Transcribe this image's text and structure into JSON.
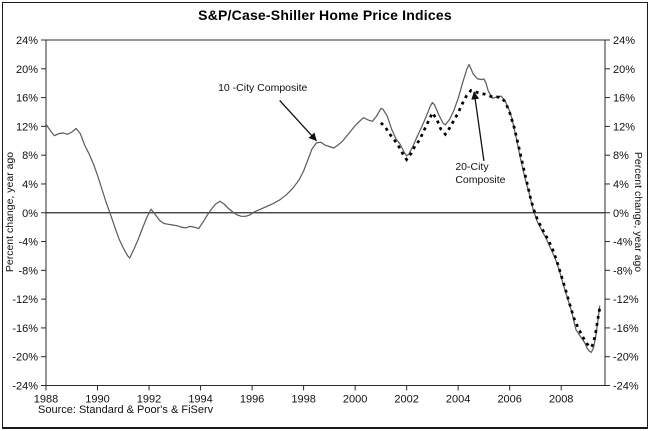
{
  "header": {
    "title": "S&P/Case-Shiller Home Price Indices"
  },
  "axis": {
    "left_label": "Percent change, year ago",
    "right_label": "Percent change, year ago"
  },
  "footer": {
    "source": "Source: Standard & Poor's & FiServ"
  },
  "colors": {
    "solid_line": "#5a5a5a",
    "dotted_line": "#000000",
    "axis": "#2b2b2b"
  },
  "chart_data": {
    "type": "line",
    "title": "S&P/Case-Shiller Home Price Indices",
    "xlabel": "",
    "ylabel": "Percent change, year ago",
    "xlim": [
      1988,
      2009.7
    ],
    "ylim": [
      -24,
      24
    ],
    "grid": false,
    "legend_position": "none",
    "zero_line": true,
    "yticks": [
      24,
      20,
      16,
      12,
      8,
      4,
      0,
      -4,
      -8,
      -12,
      -16,
      -20,
      -24
    ],
    "ytick_labels": [
      "24%",
      "20%",
      "16%",
      "12%",
      "8%",
      "4%",
      "0%",
      "-4%",
      "-8%",
      "-12%",
      "-16%",
      "-20%",
      "-24%"
    ],
    "xticks": [
      1988,
      1990,
      1992,
      1994,
      1996,
      1998,
      2000,
      2002,
      2004,
      2006,
      2008
    ],
    "xtick_labels": [
      "1988",
      "1990",
      "1992",
      "1994",
      "1996",
      "1998",
      "2000",
      "2002",
      "2004",
      "2006",
      "2008"
    ],
    "series": [
      {
        "name": "10-City Composite",
        "style": "solid",
        "color": "#5a5a5a",
        "points": [
          [
            1988.0,
            12.3
          ],
          [
            1988.17,
            11.4
          ],
          [
            1988.33,
            10.7
          ],
          [
            1988.5,
            11.0
          ],
          [
            1988.67,
            11.1
          ],
          [
            1988.83,
            10.9
          ],
          [
            1989.0,
            11.2
          ],
          [
            1989.17,
            11.7
          ],
          [
            1989.33,
            11.0
          ],
          [
            1989.5,
            9.4
          ],
          [
            1989.67,
            8.2
          ],
          [
            1989.83,
            6.9
          ],
          [
            1990.0,
            5.2
          ],
          [
            1990.17,
            3.3
          ],
          [
            1990.33,
            1.5
          ],
          [
            1990.5,
            -0.2
          ],
          [
            1990.67,
            -2.0
          ],
          [
            1990.83,
            -3.6
          ],
          [
            1991.0,
            -4.9
          ],
          [
            1991.17,
            -6.0
          ],
          [
            1991.25,
            -6.3
          ],
          [
            1991.42,
            -5.0
          ],
          [
            1991.58,
            -3.7
          ],
          [
            1991.75,
            -2.1
          ],
          [
            1991.92,
            -0.6
          ],
          [
            1992.08,
            0.5
          ],
          [
            1992.25,
            -0.3
          ],
          [
            1992.42,
            -1.1
          ],
          [
            1992.58,
            -1.5
          ],
          [
            1992.75,
            -1.6
          ],
          [
            1992.92,
            -1.7
          ],
          [
            1993.08,
            -1.8
          ],
          [
            1993.25,
            -2.0
          ],
          [
            1993.42,
            -2.1
          ],
          [
            1993.58,
            -1.9
          ],
          [
            1993.75,
            -2.0
          ],
          [
            1993.92,
            -2.2
          ],
          [
            1994.08,
            -1.4
          ],
          [
            1994.25,
            -0.4
          ],
          [
            1994.42,
            0.5
          ],
          [
            1994.58,
            1.2
          ],
          [
            1994.75,
            1.6
          ],
          [
            1994.92,
            1.2
          ],
          [
            1995.08,
            0.6
          ],
          [
            1995.25,
            0.1
          ],
          [
            1995.42,
            -0.3
          ],
          [
            1995.58,
            -0.5
          ],
          [
            1995.75,
            -0.5
          ],
          [
            1995.92,
            -0.3
          ],
          [
            1996.08,
            0.1
          ],
          [
            1996.33,
            0.5
          ],
          [
            1996.58,
            0.9
          ],
          [
            1996.83,
            1.3
          ],
          [
            1997.08,
            1.8
          ],
          [
            1997.33,
            2.5
          ],
          [
            1997.58,
            3.4
          ],
          [
            1997.83,
            4.6
          ],
          [
            1998.0,
            5.8
          ],
          [
            1998.17,
            7.4
          ],
          [
            1998.33,
            8.9
          ],
          [
            1998.5,
            9.7
          ],
          [
            1998.67,
            9.8
          ],
          [
            1998.83,
            9.4
          ],
          [
            1999.0,
            9.2
          ],
          [
            1999.17,
            9.0
          ],
          [
            1999.33,
            9.4
          ],
          [
            1999.5,
            9.9
          ],
          [
            1999.75,
            11.0
          ],
          [
            2000.0,
            12.1
          ],
          [
            2000.17,
            12.7
          ],
          [
            2000.33,
            13.2
          ],
          [
            2000.5,
            12.9
          ],
          [
            2000.67,
            12.7
          ],
          [
            2000.83,
            13.4
          ],
          [
            2001.0,
            14.5
          ],
          [
            2001.08,
            14.4
          ],
          [
            2001.25,
            13.4
          ],
          [
            2001.42,
            11.6
          ],
          [
            2001.58,
            10.3
          ],
          [
            2001.75,
            9.5
          ],
          [
            2001.92,
            8.3
          ],
          [
            2002.0,
            7.9
          ],
          [
            2002.08,
            8.1
          ],
          [
            2002.25,
            9.3
          ],
          [
            2002.42,
            10.7
          ],
          [
            2002.58,
            11.9
          ],
          [
            2002.75,
            13.3
          ],
          [
            2002.92,
            14.8
          ],
          [
            2003.0,
            15.3
          ],
          [
            2003.08,
            15.0
          ],
          [
            2003.25,
            13.6
          ],
          [
            2003.42,
            12.4
          ],
          [
            2003.5,
            12.2
          ],
          [
            2003.67,
            13.0
          ],
          [
            2003.83,
            14.2
          ],
          [
            2004.0,
            15.9
          ],
          [
            2004.17,
            18.0
          ],
          [
            2004.33,
            19.9
          ],
          [
            2004.42,
            20.6
          ],
          [
            2004.5,
            20.0
          ],
          [
            2004.58,
            19.3
          ],
          [
            2004.75,
            18.6
          ],
          [
            2004.92,
            18.5
          ],
          [
            2005.0,
            18.6
          ],
          [
            2005.08,
            18.0
          ],
          [
            2005.17,
            16.9
          ],
          [
            2005.33,
            15.9
          ],
          [
            2005.5,
            16.1
          ],
          [
            2005.67,
            16.2
          ],
          [
            2005.83,
            15.5
          ],
          [
            2006.0,
            14.1
          ],
          [
            2006.08,
            13.2
          ],
          [
            2006.25,
            10.5
          ],
          [
            2006.42,
            7.5
          ],
          [
            2006.58,
            5.0
          ],
          [
            2006.75,
            2.8
          ],
          [
            2006.92,
            0.3
          ],
          [
            2007.08,
            -1.3
          ],
          [
            2007.25,
            -2.5
          ],
          [
            2007.42,
            -3.6
          ],
          [
            2007.58,
            -4.9
          ],
          [
            2007.75,
            -6.2
          ],
          [
            2007.92,
            -7.9
          ],
          [
            2008.08,
            -10.0
          ],
          [
            2008.25,
            -11.9
          ],
          [
            2008.42,
            -13.9
          ],
          [
            2008.5,
            -15.2
          ],
          [
            2008.58,
            -16.3
          ],
          [
            2008.75,
            -17.2
          ],
          [
            2008.92,
            -18.1
          ],
          [
            2009.0,
            -18.8
          ],
          [
            2009.08,
            -19.2
          ],
          [
            2009.17,
            -19.4
          ],
          [
            2009.25,
            -18.8
          ],
          [
            2009.33,
            -17.4
          ],
          [
            2009.42,
            -15.1
          ],
          [
            2009.5,
            -12.9
          ]
        ]
      },
      {
        "name": "20-City Composite",
        "style": "dotted",
        "color": "#000000",
        "points": [
          [
            2001.0,
            12.5
          ],
          [
            2001.17,
            11.9
          ],
          [
            2001.33,
            11.0
          ],
          [
            2001.5,
            10.2
          ],
          [
            2001.67,
            9.4
          ],
          [
            2001.83,
            8.3
          ],
          [
            2002.0,
            7.4
          ],
          [
            2002.17,
            8.2
          ],
          [
            2002.33,
            9.3
          ],
          [
            2002.5,
            10.1
          ],
          [
            2002.67,
            11.4
          ],
          [
            2002.83,
            12.6
          ],
          [
            2003.0,
            13.9
          ],
          [
            2003.17,
            13.0
          ],
          [
            2003.33,
            11.6
          ],
          [
            2003.5,
            10.9
          ],
          [
            2003.67,
            11.8
          ],
          [
            2003.83,
            12.8
          ],
          [
            2004.0,
            13.9
          ],
          [
            2004.17,
            15.2
          ],
          [
            2004.33,
            16.3
          ],
          [
            2004.5,
            17.0
          ],
          [
            2004.67,
            16.8
          ],
          [
            2004.83,
            16.6
          ],
          [
            2005.0,
            16.5
          ],
          [
            2005.17,
            16.3
          ],
          [
            2005.33,
            16.1
          ],
          [
            2005.5,
            16.1
          ],
          [
            2005.67,
            16.0
          ],
          [
            2005.83,
            15.4
          ],
          [
            2006.0,
            13.9
          ],
          [
            2006.17,
            11.9
          ],
          [
            2006.33,
            9.5
          ],
          [
            2006.5,
            6.8
          ],
          [
            2006.67,
            4.2
          ],
          [
            2006.83,
            1.7
          ],
          [
            2007.0,
            -0.3
          ],
          [
            2007.17,
            -1.6
          ],
          [
            2007.33,
            -2.7
          ],
          [
            2007.5,
            -3.8
          ],
          [
            2007.67,
            -5.1
          ],
          [
            2007.83,
            -6.7
          ],
          [
            2008.0,
            -8.7
          ],
          [
            2008.17,
            -10.7
          ],
          [
            2008.33,
            -12.7
          ],
          [
            2008.5,
            -14.7
          ],
          [
            2008.67,
            -16.1
          ],
          [
            2008.83,
            -17.2
          ],
          [
            2009.0,
            -18.2
          ],
          [
            2009.08,
            -18.5
          ],
          [
            2009.17,
            -18.7
          ],
          [
            2009.25,
            -18.1
          ],
          [
            2009.33,
            -16.8
          ],
          [
            2009.42,
            -14.8
          ],
          [
            2009.5,
            -13.2
          ]
        ]
      }
    ],
    "annotations": [
      {
        "id": "annotation-10-city",
        "lines": [
          "10 -City Composite"
        ],
        "text_pos": [
          1994.68,
          17.9
        ],
        "arrow": {
          "from": [
            1997.07,
            15.6
          ],
          "to": [
            1998.5,
            10.0
          ]
        }
      },
      {
        "id": "annotation-20-city",
        "lines": [
          "20-City",
          "Composite"
        ],
        "text_pos": [
          2003.89,
          6.9
        ],
        "arrow": {
          "from": [
            2005.0,
            7.2
          ],
          "to": [
            2004.62,
            16.8
          ]
        }
      }
    ]
  }
}
